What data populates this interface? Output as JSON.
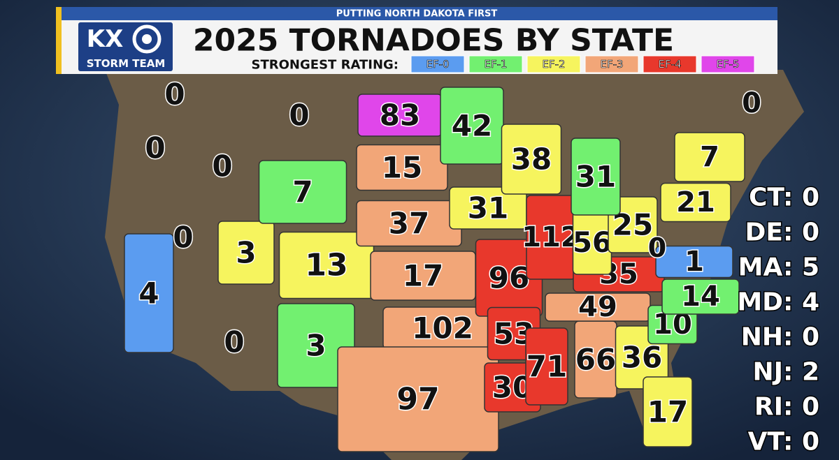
{
  "header": {
    "tagline": "PUTTING NORTH DAKOTA FIRST",
    "title": "2025 TORNADOES BY STATE",
    "logo_top": "KX",
    "logo_bottom": "STORM TEAM",
    "legend_label": "STRONGEST RATING:"
  },
  "legend": [
    {
      "label": "EF-0",
      "color": "#5b9cf0"
    },
    {
      "label": "EF-1",
      "color": "#72f070"
    },
    {
      "label": "EF-2",
      "color": "#f6f45e"
    },
    {
      "label": "EF-3",
      "color": "#f2a678"
    },
    {
      "label": "EF-4",
      "color": "#e8382c"
    },
    {
      "label": "EF-5",
      "color": "#e046ea"
    }
  ],
  "states": [
    {
      "count": 0,
      "rating": null
    },
    {
      "count": 0,
      "rating": null
    },
    {
      "count": 0,
      "rating": null
    },
    {
      "count": 0,
      "rating": null
    },
    {
      "count": 4,
      "rating": 0
    },
    {
      "count": 0,
      "rating": null
    },
    {
      "count": 3,
      "rating": 2
    },
    {
      "count": 7,
      "rating": 1
    },
    {
      "count": 13,
      "rating": 2
    },
    {
      "count": 0,
      "rating": null
    },
    {
      "count": 3,
      "rating": 1
    },
    {
      "count": 83,
      "rating": 5
    },
    {
      "count": 15,
      "rating": 3
    },
    {
      "count": 37,
      "rating": 3
    },
    {
      "count": 17,
      "rating": 3
    },
    {
      "count": 102,
      "rating": 3
    },
    {
      "count": 97,
      "rating": 3
    },
    {
      "count": 42,
      "rating": 1
    },
    {
      "count": 31,
      "rating": 2
    },
    {
      "count": 96,
      "rating": 4
    },
    {
      "count": 53,
      "rating": 4
    },
    {
      "count": 30,
      "rating": 4
    },
    {
      "count": 38,
      "rating": 2
    },
    {
      "count": 112,
      "rating": 4
    },
    {
      "count": 71,
      "rating": 4
    },
    {
      "count": 66,
      "rating": 3
    },
    {
      "count": 49,
      "rating": 3
    },
    {
      "count": 35,
      "rating": 4
    },
    {
      "count": 56,
      "rating": 2
    },
    {
      "count": 25,
      "rating": 2
    },
    {
      "count": 31,
      "rating": 1
    },
    {
      "count": 36,
      "rating": 2
    },
    {
      "count": 17,
      "rating": 2
    },
    {
      "count": 10,
      "rating": 1
    },
    {
      "count": 14,
      "rating": 1
    },
    {
      "count": 1,
      "rating": 0
    },
    {
      "count": 0,
      "rating": null
    },
    {
      "count": 21,
      "rating": 2
    },
    {
      "count": 7,
      "rating": 2
    },
    {
      "count": 0,
      "rating": null
    }
  ],
  "small_states": [
    "CT: 0",
    "DE: 0",
    "MA: 5",
    "MD: 4",
    "NH: 0",
    "NJ: 2",
    "RI: 0",
    "VT: 0"
  ]
}
